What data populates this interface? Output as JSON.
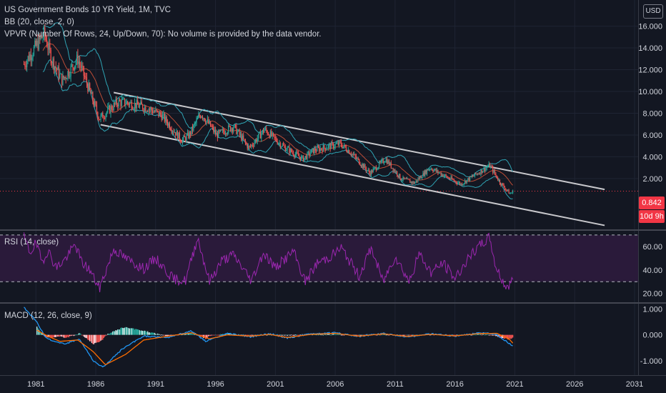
{
  "header": {
    "title": "US Government Bonds 10 YR Yield, 1M, TVC",
    "bb_legend": "BB (20, close, 2, 0)",
    "vpvr_legend": "VPVR (Number Of Rows, 24, Up/Down, 70): No volume is provided by the data vendor."
  },
  "currency": "USD",
  "price_tag": {
    "last": "0.842",
    "countdown": "10d 9h"
  },
  "panes": {
    "rsi_title": "RSI (14, close)",
    "macd_title": "MACD (12, 26, close, 9)"
  },
  "colors": {
    "background": "#131722",
    "candle_up": "#26a69a",
    "candle_down": "#ef5350",
    "bb_band": "#2fa4b4",
    "bb_basis": "#e65a3c",
    "channel": "#c8c8cc",
    "rsi_line": "#9c27b0",
    "rsi_fill": "#2a1a3a",
    "macd_line": "#2196f3",
    "signal_line": "#ff6d00",
    "last_price": "#f23645"
  },
  "chart_data": [
    {
      "type": "candlestick",
      "title": "US Government Bonds 10 YR Yield, 1M, TVC",
      "x_ticks": [
        "1981",
        "1986",
        "1991",
        "1996",
        "2001",
        "2006",
        "2011",
        "2016",
        "2021",
        "2026",
        "2031"
      ],
      "y_ticks": [
        "2.000",
        "4.000",
        "6.000",
        "8.000",
        "10.000",
        "12.000",
        "14.000",
        "16.000"
      ],
      "xlim": [
        1978,
        2031.3
      ],
      "ylim": [
        -2.6,
        18.4
      ],
      "last_value": 0.842,
      "series": [
        {
          "x": [
            1980,
            1981.7,
            1982.3,
            1983.2,
            1984.5,
            1985.5,
            1986.3,
            1987.8,
            1988.5,
            1990.3,
            1991.5,
            1993.2,
            1993.8,
            1994.8,
            1996.1,
            1997.5,
            1998.8,
            2000.1,
            2001.6,
            2003.3,
            2004.2,
            2006.4,
            2007.2,
            2008.9,
            2010.2,
            2011.5,
            2012.6,
            2013.9,
            2015.4,
            2016.5,
            2018.9,
            2019.8,
            2020.6,
            2020.9
          ],
          "y": [
            12.5,
            15.3,
            13.0,
            11.0,
            13.0,
            10.0,
            7.5,
            9.0,
            9.0,
            8.5,
            7.8,
            5.5,
            6.0,
            8.0,
            6.0,
            6.8,
            4.8,
            6.5,
            5.0,
            3.8,
            4.6,
            5.2,
            4.5,
            2.5,
            3.8,
            2.0,
            1.6,
            3.0,
            2.1,
            1.5,
            3.2,
            1.6,
            0.6,
            0.84
          ]
        }
      ],
      "channel": [
        {
          "x": [
            1987.5,
            2028.5
          ],
          "y": [
            9.9,
            1.0
          ]
        },
        {
          "x": [
            1986.4,
            2028.5
          ],
          "y": [
            6.95,
            -2.3
          ]
        }
      ]
    },
    {
      "type": "line",
      "title": "RSI (14, close)",
      "y_ticks": [
        "20.00",
        "40.00",
        "60.00"
      ],
      "ylim": [
        13,
        73
      ],
      "bands": [
        30,
        70
      ],
      "series": [
        {
          "x": [
            1980,
            1980.5,
            1981,
            1981.5,
            1982,
            1982.7,
            1983.5,
            1984.3,
            1984.8,
            1985.5,
            1986.3,
            1987.5,
            1988.5,
            1990,
            1991,
            1992.5,
            1993.5,
            1994.5,
            1995.5,
            1996.5,
            1997.5,
            1999,
            2000,
            2001,
            2002.5,
            2003.5,
            2004.5,
            2005.5,
            2006.5,
            2008,
            2009,
            2010,
            2011,
            2012.2,
            2013,
            2014,
            2015,
            2016,
            2017,
            2018,
            2018.9,
            2019.4,
            2020.2,
            2020.6,
            2020.9
          ],
          "y": [
            68,
            55,
            63,
            47,
            57,
            42,
            50,
            62,
            47,
            40,
            24,
            58,
            50,
            41,
            50,
            32,
            31,
            68,
            30,
            48,
            53,
            31,
            55,
            42,
            56,
            30,
            46,
            51,
            59,
            35,
            59,
            30,
            52,
            30,
            54,
            38,
            46,
            33,
            48,
            60,
            68,
            43,
            26,
            27,
            34
          ]
        }
      ]
    },
    {
      "type": "line",
      "title": "MACD (12, 26, close, 9)",
      "y_ticks": [
        "-1.000",
        "0.000",
        "1.000"
      ],
      "ylim": [
        -1.55,
        1.2
      ],
      "series": [
        {
          "name": "",
          "x": [
            1980,
            1981,
            1981.8,
            1982.5,
            1983.5,
            1984.6,
            1985.8,
            1986.6,
            1988.2,
            1990,
            1992,
            1994,
            1995.2,
            1997,
            1999,
            2000.5,
            2002,
            2004,
            2006,
            2008,
            2010,
            2012,
            2014,
            2016,
            2018,
            2019.3,
            2020.3,
            2020.9
          ],
          "y": [
            1.05,
            0.55,
            -0.1,
            -0.25,
            -0.35,
            -0.15,
            -1.0,
            -1.25,
            -0.55,
            -0.05,
            -0.1,
            0.15,
            -0.25,
            0.05,
            -0.08,
            0.05,
            -0.12,
            0.04,
            0.08,
            -0.06,
            0.06,
            -0.08,
            0.04,
            -0.05,
            0.07,
            0.05,
            -0.25,
            -0.45
          ]
        },
        {
          "name": "",
          "x": [
            1981,
            1982,
            1983,
            1984.5,
            1985.8,
            1986.8,
            1988.5,
            1990,
            1992,
            1994,
            1995.5,
            1997,
            1999,
            2000.5,
            2002,
            2004,
            2006,
            2008,
            2010,
            2012,
            2014,
            2016,
            2018,
            2019.5,
            2020.5,
            2020.9
          ],
          "y": [
            0.2,
            -0.05,
            -0.25,
            -0.2,
            -0.65,
            -1.15,
            -0.75,
            -0.2,
            -0.05,
            0.08,
            -0.15,
            0.0,
            -0.05,
            0.02,
            -0.1,
            0.02,
            0.06,
            -0.05,
            0.04,
            -0.06,
            0.02,
            -0.04,
            0.05,
            0.06,
            -0.15,
            -0.35
          ]
        }
      ]
    }
  ]
}
